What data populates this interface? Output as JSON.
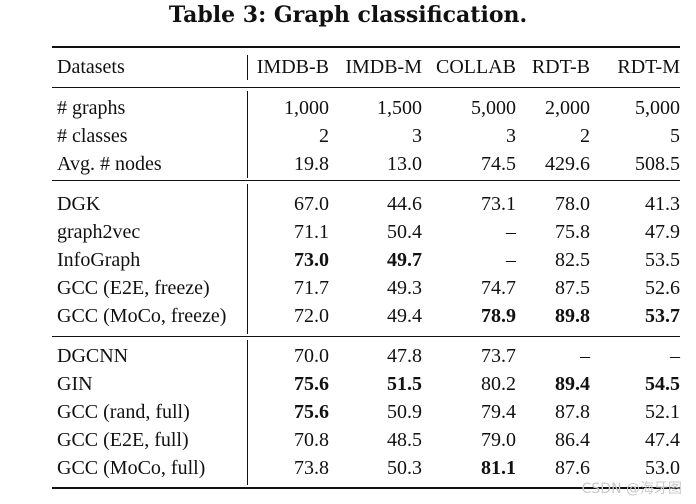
{
  "caption": "Table 3: Graph classification.",
  "header": {
    "first": "Datasets",
    "columns": [
      "IMDB-B",
      "IMDB-M",
      "COLLAB",
      "RDT-B",
      "RDT-M"
    ]
  },
  "stats": [
    {
      "name": "# graphs",
      "values": [
        "1,000",
        "1,500",
        "5,000",
        "2,000",
        "5,000"
      ]
    },
    {
      "name": "# classes",
      "values": [
        "2",
        "3",
        "3",
        "2",
        "5"
      ]
    },
    {
      "name": "Avg. # nodes",
      "values": [
        "19.8",
        "13.0",
        "74.5",
        "429.6",
        "508.5"
      ]
    }
  ],
  "group1": [
    {
      "name": "DGK",
      "values": [
        "67.0",
        "44.6",
        "73.1",
        "78.0",
        "41.3"
      ],
      "bold": [
        false,
        false,
        false,
        false,
        false
      ]
    },
    {
      "name": "graph2vec",
      "values": [
        "71.1",
        "50.4",
        "–",
        "75.8",
        "47.9"
      ],
      "bold": [
        false,
        false,
        false,
        false,
        false
      ]
    },
    {
      "name": "InfoGraph",
      "values": [
        "73.0",
        "49.7",
        "–",
        "82.5",
        "53.5"
      ],
      "bold": [
        true,
        true,
        false,
        false,
        false
      ]
    },
    {
      "name": "GCC (E2E, freeze)",
      "values": [
        "71.7",
        "49.3",
        "74.7",
        "87.5",
        "52.6"
      ],
      "bold": [
        false,
        false,
        false,
        false,
        false
      ]
    },
    {
      "name": "GCC (MoCo, freeze)",
      "values": [
        "72.0",
        "49.4",
        "78.9",
        "89.8",
        "53.7"
      ],
      "bold": [
        false,
        false,
        true,
        true,
        true
      ]
    }
  ],
  "group2": [
    {
      "name": "DGCNN",
      "values": [
        "70.0",
        "47.8",
        "73.7",
        "–",
        "–"
      ],
      "bold": [
        false,
        false,
        false,
        false,
        false
      ]
    },
    {
      "name": "GIN",
      "values": [
        "75.6",
        "51.5",
        "80.2",
        "89.4",
        "54.5"
      ],
      "bold": [
        true,
        true,
        false,
        true,
        true
      ]
    },
    {
      "name": "GCC (rand, full)",
      "values": [
        "75.6",
        "50.9",
        "79.4",
        "87.8",
        "52.1"
      ],
      "bold": [
        true,
        false,
        false,
        false,
        false
      ]
    },
    {
      "name": "GCC (E2E, full)",
      "values": [
        "70.8",
        "48.5",
        "79.0",
        "86.4",
        "47.4"
      ],
      "bold": [
        false,
        false,
        false,
        false,
        false
      ]
    },
    {
      "name": "GCC (MoCo, full)",
      "values": [
        "73.8",
        "50.3",
        "81.1",
        "87.6",
        "53.0"
      ],
      "bold": [
        false,
        false,
        true,
        false,
        false
      ]
    }
  ],
  "watermark": "CSDN @海牙图"
}
